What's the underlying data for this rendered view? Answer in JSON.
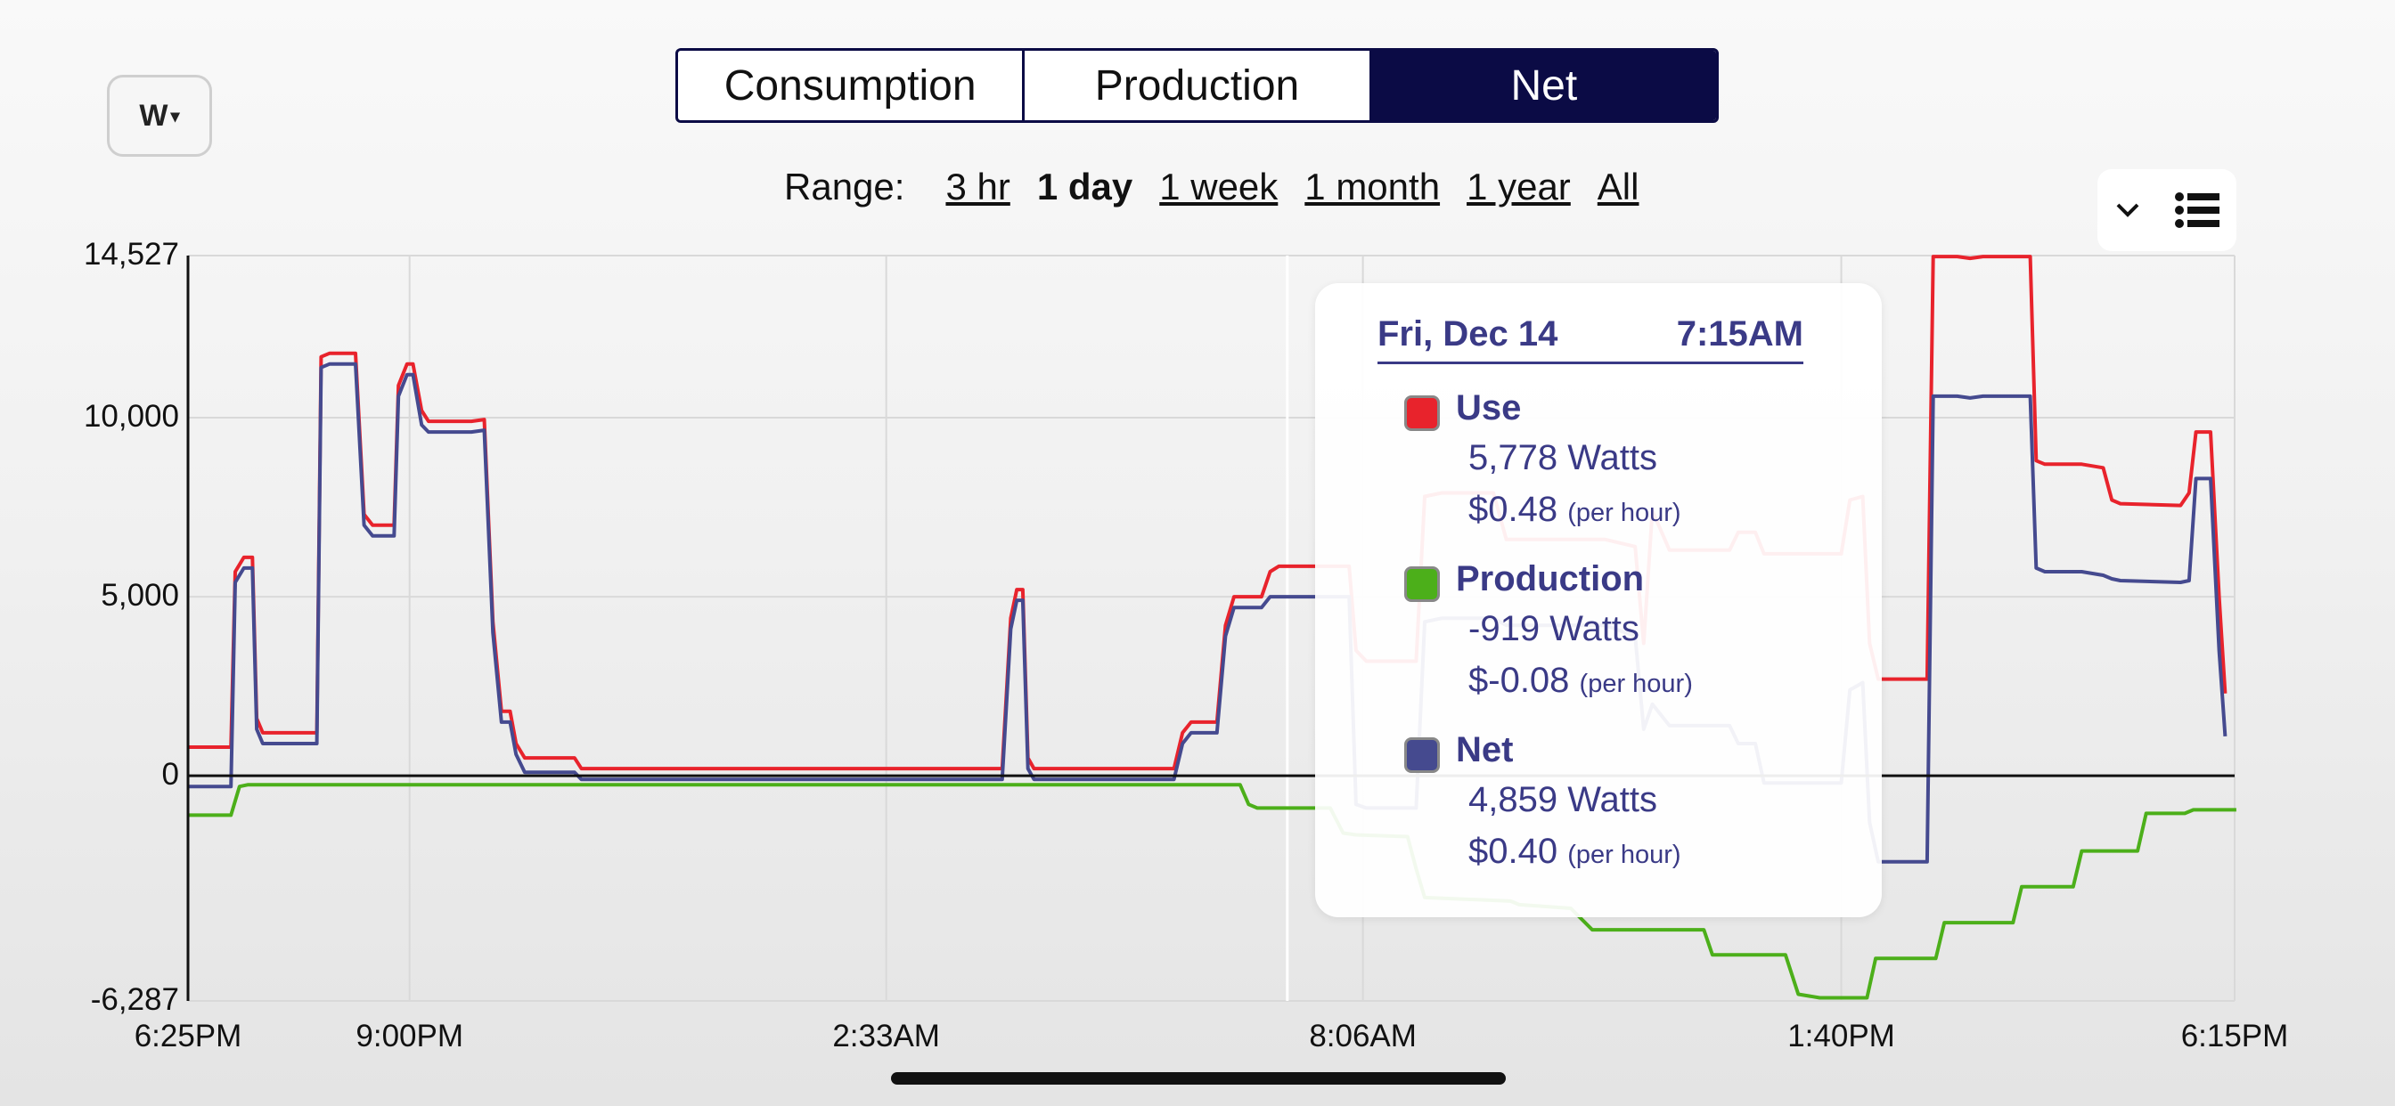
{
  "unit_selector": {
    "label": "W",
    "caret": "▾"
  },
  "tabs": [
    {
      "label": "Consumption",
      "active": false
    },
    {
      "label": "Production",
      "active": false
    },
    {
      "label": "Net",
      "active": true
    }
  ],
  "range": {
    "label": "Range:",
    "options": [
      {
        "label": "3 hr",
        "selected": false
      },
      {
        "label": "1 day",
        "selected": true
      },
      {
        "label": "1 week",
        "selected": false
      },
      {
        "label": "1 month",
        "selected": false
      },
      {
        "label": "1 year",
        "selected": false
      },
      {
        "label": "All",
        "selected": false
      }
    ]
  },
  "legend_toggle": {
    "icons": [
      "chevron-down-icon",
      "list-icon"
    ]
  },
  "tooltip": {
    "date": "Fri, Dec 14",
    "time": "7:15AM",
    "items": [
      {
        "name": "Use",
        "watts": "5,778 Watts",
        "cost": "$0.48",
        "cost_unit": "(per hour)",
        "color": "#e8232c"
      },
      {
        "name": "Production",
        "watts": "-919 Watts",
        "cost": "$-0.08",
        "cost_unit": "(per hour)",
        "color": "#4caf1a"
      },
      {
        "name": "Net",
        "watts": "4,859 Watts",
        "cost": "$0.40",
        "cost_unit": "(per hour)",
        "color": "#454a8f"
      }
    ]
  },
  "chart_data": {
    "type": "line",
    "x_unit": "hours after 6:25PM",
    "x_range": [
      0,
      23.83
    ],
    "y_range": [
      -6287,
      14527
    ],
    "y_ticks": [
      {
        "value": 14527,
        "label": "14,527"
      },
      {
        "value": 10000,
        "label": "10,000"
      },
      {
        "value": 5000,
        "label": "5,000"
      },
      {
        "value": 0,
        "label": "0"
      },
      {
        "value": -6287,
        "label": "-6,287"
      }
    ],
    "x_ticks": [
      {
        "value": 0,
        "label": "6:25PM"
      },
      {
        "value": 2.58,
        "label": "9:00PM"
      },
      {
        "value": 8.13,
        "label": "2:33AM"
      },
      {
        "value": 13.68,
        "label": "8:06AM"
      },
      {
        "value": 19.25,
        "label": "1:40PM"
      },
      {
        "value": 23.83,
        "label": "6:15PM"
      }
    ],
    "cursor_x": 12.8,
    "grid": true,
    "colors": {
      "use": "#e8232c",
      "production": "#4caf1a",
      "net": "#454a8f",
      "grid": "#d9d9d9",
      "axis": "#111111"
    },
    "series": [
      {
        "name": "Use",
        "points": [
          [
            0,
            800
          ],
          [
            0.5,
            800
          ],
          [
            0.55,
            5700
          ],
          [
            0.65,
            6100
          ],
          [
            0.75,
            6100
          ],
          [
            0.8,
            1600
          ],
          [
            0.87,
            1200
          ],
          [
            1.5,
            1200
          ],
          [
            1.55,
            11700
          ],
          [
            1.65,
            11800
          ],
          [
            1.95,
            11800
          ],
          [
            2.05,
            7300
          ],
          [
            2.15,
            7000
          ],
          [
            2.4,
            7000
          ],
          [
            2.45,
            10900
          ],
          [
            2.55,
            11500
          ],
          [
            2.62,
            11500
          ],
          [
            2.72,
            10200
          ],
          [
            2.8,
            9900
          ],
          [
            3.3,
            9900
          ],
          [
            3.45,
            9950
          ],
          [
            3.55,
            4300
          ],
          [
            3.65,
            1800
          ],
          [
            3.75,
            1800
          ],
          [
            3.82,
            900
          ],
          [
            3.92,
            500
          ],
          [
            4.5,
            500
          ],
          [
            4.58,
            200
          ],
          [
            9.48,
            200
          ],
          [
            9.58,
            4400
          ],
          [
            9.65,
            5200
          ],
          [
            9.72,
            5200
          ],
          [
            9.78,
            500
          ],
          [
            9.85,
            200
          ],
          [
            11.48,
            200
          ],
          [
            11.58,
            1200
          ],
          [
            11.68,
            1500
          ],
          [
            11.98,
            1500
          ],
          [
            12.08,
            4200
          ],
          [
            12.18,
            5000
          ],
          [
            12.5,
            5000
          ],
          [
            12.6,
            5700
          ],
          [
            12.7,
            5850
          ],
          [
            13.42,
            5850
          ],
          [
            13.52,
            5850
          ],
          [
            13.6,
            3500
          ],
          [
            13.72,
            3200
          ],
          [
            14.3,
            3200
          ],
          [
            14.4,
            7800
          ],
          [
            14.6,
            7900
          ],
          [
            15.2,
            7900
          ],
          [
            15.35,
            6600
          ],
          [
            16.5,
            6600
          ],
          [
            16.85,
            6400
          ],
          [
            16.95,
            3700
          ],
          [
            17.05,
            7400
          ],
          [
            17.25,
            6300
          ],
          [
            17.95,
            6300
          ],
          [
            18.05,
            6800
          ],
          [
            18.25,
            6800
          ],
          [
            18.35,
            6200
          ],
          [
            19.25,
            6200
          ],
          [
            19.35,
            7700
          ],
          [
            19.5,
            7800
          ],
          [
            19.58,
            3700
          ],
          [
            19.68,
            2700
          ],
          [
            20.25,
            2700
          ],
          [
            20.32,
            14500
          ],
          [
            20.6,
            14500
          ],
          [
            20.75,
            14450
          ],
          [
            20.9,
            14500
          ],
          [
            21.45,
            14500
          ],
          [
            21.52,
            8800
          ],
          [
            21.62,
            8700
          ],
          [
            22.05,
            8700
          ],
          [
            22.3,
            8600
          ],
          [
            22.4,
            7700
          ],
          [
            22.5,
            7600
          ],
          [
            23.2,
            7550
          ],
          [
            23.3,
            7900
          ],
          [
            23.38,
            9600
          ],
          [
            23.55,
            9600
          ],
          [
            23.65,
            5000
          ],
          [
            23.72,
            2300
          ]
        ]
      },
      {
        "name": "Production",
        "points": [
          [
            0,
            -1100
          ],
          [
            0.5,
            -1100
          ],
          [
            0.6,
            -300
          ],
          [
            0.7,
            -250
          ],
          [
            12.25,
            -250
          ],
          [
            12.35,
            -800
          ],
          [
            12.45,
            -900
          ],
          [
            13.3,
            -900
          ],
          [
            13.45,
            -1600
          ],
          [
            13.6,
            -1650
          ],
          [
            14.2,
            -1700
          ],
          [
            14.3,
            -2600
          ],
          [
            14.4,
            -3400
          ],
          [
            15.4,
            -3500
          ],
          [
            15.5,
            -3600
          ],
          [
            16.1,
            -3700
          ],
          [
            16.35,
            -4300
          ],
          [
            17.65,
            -4300
          ],
          [
            17.75,
            -5000
          ],
          [
            18.6,
            -5000
          ],
          [
            18.75,
            -6100
          ],
          [
            19.0,
            -6200
          ],
          [
            19.55,
            -6200
          ],
          [
            19.65,
            -5100
          ],
          [
            20.35,
            -5100
          ],
          [
            20.45,
            -4100
          ],
          [
            21.25,
            -4100
          ],
          [
            21.35,
            -3100
          ],
          [
            21.95,
            -3100
          ],
          [
            22.05,
            -2100
          ],
          [
            22.7,
            -2100
          ],
          [
            22.8,
            -1050
          ],
          [
            23.0,
            -1050
          ],
          [
            23.15,
            -1050
          ],
          [
            23.25,
            -1050
          ],
          [
            23.35,
            -950
          ],
          [
            23.85,
            -950
          ]
        ]
      },
      {
        "name": "Net",
        "points": [
          [
            0,
            -300
          ],
          [
            0.5,
            -300
          ],
          [
            0.55,
            5400
          ],
          [
            0.65,
            5800
          ],
          [
            0.75,
            5800
          ],
          [
            0.8,
            1300
          ],
          [
            0.87,
            900
          ],
          [
            1.5,
            900
          ],
          [
            1.55,
            11400
          ],
          [
            1.65,
            11500
          ],
          [
            1.95,
            11500
          ],
          [
            2.05,
            7000
          ],
          [
            2.15,
            6700
          ],
          [
            2.4,
            6700
          ],
          [
            2.45,
            10600
          ],
          [
            2.55,
            11200
          ],
          [
            2.62,
            11200
          ],
          [
            2.72,
            9800
          ],
          [
            2.8,
            9600
          ],
          [
            3.3,
            9600
          ],
          [
            3.45,
            9650
          ],
          [
            3.55,
            4000
          ],
          [
            3.65,
            1500
          ],
          [
            3.75,
            1500
          ],
          [
            3.82,
            600
          ],
          [
            3.92,
            100
          ],
          [
            4.5,
            100
          ],
          [
            4.58,
            -100
          ],
          [
            9.48,
            -100
          ],
          [
            9.58,
            4100
          ],
          [
            9.65,
            4900
          ],
          [
            9.72,
            4900
          ],
          [
            9.78,
            200
          ],
          [
            9.85,
            -100
          ],
          [
            11.48,
            -100
          ],
          [
            11.58,
            900
          ],
          [
            11.68,
            1200
          ],
          [
            11.98,
            1200
          ],
          [
            12.08,
            3900
          ],
          [
            12.18,
            4700
          ],
          [
            12.5,
            4700
          ],
          [
            12.6,
            5000
          ],
          [
            12.7,
            5000
          ],
          [
            13.42,
            5000
          ],
          [
            13.52,
            5000
          ],
          [
            13.6,
            -800
          ],
          [
            13.72,
            -900
          ],
          [
            14.3,
            -900
          ],
          [
            14.4,
            4300
          ],
          [
            14.6,
            4400
          ],
          [
            15.2,
            4400
          ],
          [
            15.35,
            4200
          ],
          [
            16.5,
            4200
          ],
          [
            16.85,
            3900
          ],
          [
            16.95,
            1300
          ],
          [
            17.05,
            2000
          ],
          [
            17.25,
            1400
          ],
          [
            17.95,
            1400
          ],
          [
            18.05,
            900
          ],
          [
            18.25,
            900
          ],
          [
            18.35,
            -200
          ],
          [
            19.25,
            -200
          ],
          [
            19.35,
            2400
          ],
          [
            19.5,
            2600
          ],
          [
            19.58,
            -1300
          ],
          [
            19.68,
            -2400
          ],
          [
            20.25,
            -2400
          ],
          [
            20.32,
            10600
          ],
          [
            20.6,
            10600
          ],
          [
            20.75,
            10550
          ],
          [
            20.9,
            10600
          ],
          [
            21.45,
            10600
          ],
          [
            21.52,
            5800
          ],
          [
            21.62,
            5700
          ],
          [
            22.05,
            5700
          ],
          [
            22.3,
            5600
          ],
          [
            22.4,
            5500
          ],
          [
            22.5,
            5450
          ],
          [
            23.2,
            5400
          ],
          [
            23.3,
            5450
          ],
          [
            23.38,
            8300
          ],
          [
            23.55,
            8300
          ],
          [
            23.65,
            3500
          ],
          [
            23.72,
            1100
          ]
        ]
      }
    ]
  }
}
